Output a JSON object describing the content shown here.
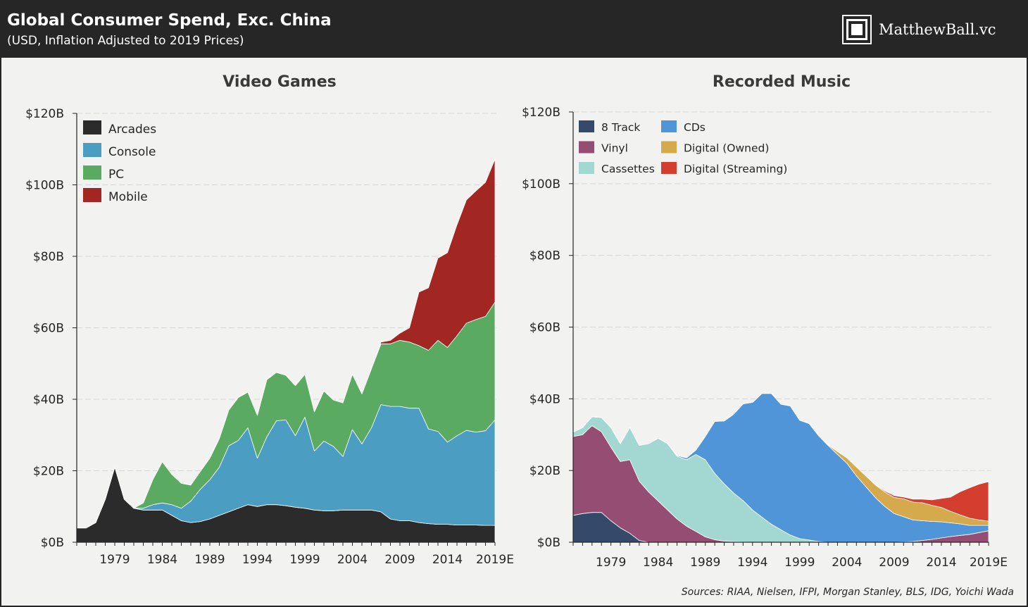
{
  "header": {
    "title": "Global Consumer Spend, Exc. China",
    "subtitle": "(USD, Inflation Adjusted to 2019 Prices)",
    "brand": "MatthewBall.vc"
  },
  "source": "Sources: RIAA, Nielsen, IFPI, Morgan Stanley, BLS, IDG, Yoichi Wada",
  "chart_data": [
    {
      "type": "area",
      "stacked": true,
      "title": "Video Games",
      "xlabel": "",
      "ylabel": "",
      "x": [
        1975,
        1976,
        1977,
        1978,
        1979,
        1980,
        1981,
        1982,
        1983,
        1984,
        1985,
        1986,
        1987,
        1988,
        1989,
        1990,
        1991,
        1992,
        1993,
        1994,
        1995,
        1996,
        1997,
        1998,
        1999,
        2000,
        2001,
        2002,
        2003,
        2004,
        2005,
        2006,
        2007,
        2008,
        2009,
        2010,
        2011,
        2012,
        2013,
        2014,
        2015,
        2016,
        2017,
        2018,
        2019
      ],
      "x_ticks": [
        1979,
        1984,
        1989,
        1994,
        1999,
        2004,
        2009,
        2014,
        2019
      ],
      "x_tick_labels": [
        "1979",
        "1984",
        "1989",
        "1994",
        "1999",
        "2004",
        "2009",
        "2014",
        "2019E"
      ],
      "ylim": [
        0,
        120
      ],
      "y_ticks": [
        0,
        20,
        40,
        60,
        80,
        100,
        120
      ],
      "y_tick_labels": [
        "$0B",
        "$20B",
        "$40B",
        "$60B",
        "$80B",
        "$100B",
        "$120B"
      ],
      "grid": true,
      "legend_position": "top-left",
      "series": [
        {
          "name": "Arcades",
          "color": "#2b2b2b",
          "values": [
            4,
            4,
            5.5,
            12,
            21,
            12,
            9.5,
            9,
            9,
            9,
            7.5,
            6,
            5.5,
            5.8,
            6.5,
            7.5,
            8.5,
            9.5,
            10.5,
            10,
            10.5,
            10.5,
            10.2,
            9.8,
            9.5,
            9,
            8.8,
            8.8,
            9,
            9,
            9,
            9,
            8.5,
            6.5,
            6,
            6,
            5.5,
            5.2,
            5,
            5,
            4.8,
            4.8,
            4.8,
            4.7,
            4.7
          ]
        },
        {
          "name": "Console",
          "color": "#4b9dc1",
          "values": [
            0,
            0,
            0,
            0,
            0,
            0,
            0,
            0.5,
            1.5,
            2,
            3,
            3.5,
            6,
            9,
            11,
            13.5,
            18.5,
            19,
            21.5,
            13.5,
            19,
            23.5,
            24,
            20,
            25.5,
            16.5,
            19.5,
            18,
            15,
            22.5,
            18.5,
            23,
            30,
            31.5,
            32,
            31.5,
            32,
            26.5,
            26,
            23,
            25,
            26.5,
            26,
            26.5,
            29.5
          ]
        },
        {
          "name": "PC",
          "color": "#5aaa61",
          "values": [
            0,
            0,
            0,
            0,
            0,
            0,
            0,
            1.5,
            7,
            11.5,
            8.5,
            7,
            4.5,
            5,
            6,
            8,
            10,
            12,
            10,
            12,
            16,
            13.5,
            12.5,
            14,
            12,
            11,
            14,
            13,
            15,
            15.5,
            14,
            16.5,
            17,
            17.5,
            18.5,
            18.5,
            17.5,
            22,
            25.5,
            26.5,
            28,
            30,
            31.5,
            32,
            33
          ]
        },
        {
          "name": "Mobile",
          "color": "#a22622",
          "values": [
            0,
            0,
            0,
            0,
            0,
            0,
            0,
            0,
            0,
            0,
            0,
            0,
            0,
            0,
            0,
            0,
            0,
            0,
            0,
            0,
            0,
            0,
            0,
            0,
            0,
            0,
            0,
            0,
            0,
            0,
            0,
            0,
            0.5,
            1,
            2,
            4,
            15,
            17.5,
            23,
            26.5,
            31,
            34.5,
            36,
            37.5,
            40
          ]
        }
      ]
    },
    {
      "type": "area",
      "stacked": true,
      "title": "Recorded Music",
      "xlabel": "",
      "ylabel": "",
      "x": [
        1975,
        1976,
        1977,
        1978,
        1979,
        1980,
        1981,
        1982,
        1983,
        1984,
        1985,
        1986,
        1987,
        1988,
        1989,
        1990,
        1991,
        1992,
        1993,
        1994,
        1995,
        1996,
        1997,
        1998,
        1999,
        2000,
        2001,
        2002,
        2003,
        2004,
        2005,
        2006,
        2007,
        2008,
        2009,
        2010,
        2011,
        2012,
        2013,
        2014,
        2015,
        2016,
        2017,
        2018,
        2019
      ],
      "x_ticks": [
        1979,
        1984,
        1989,
        1994,
        1999,
        2004,
        2009,
        2014,
        2019
      ],
      "x_tick_labels": [
        "1979",
        "1984",
        "1989",
        "1994",
        "1999",
        "2004",
        "2009",
        "2014",
        "2019E"
      ],
      "ylim": [
        0,
        120
      ],
      "y_ticks": [
        0,
        20,
        40,
        60,
        80,
        100,
        120
      ],
      "y_tick_labels": [
        "$0B",
        "$20B",
        "$40B",
        "$60B",
        "$80B",
        "$100B",
        "$120B"
      ],
      "grid": true,
      "legend_position": "top-left",
      "series": [
        {
          "name": "8 Track",
          "color": "#354a6b",
          "values": [
            7.5,
            8,
            8.3,
            8.3,
            6,
            4,
            2.5,
            0.5,
            0,
            0,
            0,
            0,
            0,
            0,
            0,
            0,
            0,
            0,
            0,
            0,
            0,
            0,
            0,
            0,
            0,
            0,
            0,
            0,
            0,
            0,
            0,
            0,
            0,
            0,
            0,
            0,
            0,
            0,
            0,
            0,
            0,
            0,
            0,
            0,
            0
          ]
        },
        {
          "name": "Vinyl",
          "color": "#954d74",
          "values": [
            22,
            22,
            24.2,
            22.5,
            20.5,
            18.5,
            20.5,
            16.5,
            14,
            11.5,
            9,
            6.5,
            4.5,
            3,
            1.5,
            0.7,
            0.3,
            0.2,
            0.1,
            0,
            0,
            0,
            0,
            0,
            0,
            0,
            0,
            0,
            0,
            0,
            0,
            0,
            0,
            0,
            0,
            0.1,
            0.2,
            0.5,
            0.8,
            1.2,
            1.6,
            1.9,
            2.2,
            2.7,
            3.2
          ]
        },
        {
          "name": "Cassettes",
          "color": "#a3d8d2",
          "values": [
            1.2,
            2,
            2.5,
            4,
            5.5,
            5,
            9,
            10,
            13.5,
            17.5,
            18.5,
            17.5,
            18.5,
            21.5,
            21.5,
            18.5,
            16,
            13.5,
            11.5,
            9,
            7,
            5,
            3.5,
            2,
            1,
            0.6,
            0.2,
            0,
            0,
            0,
            0,
            0,
            0,
            0,
            0,
            0,
            0,
            0,
            0,
            0,
            0,
            0,
            0,
            0,
            0
          ]
        },
        {
          "name": "CDs",
          "color": "#4f95d8",
          "values": [
            0,
            0,
            0,
            0,
            0,
            0,
            0,
            0,
            0,
            0,
            0,
            0.2,
            0.5,
            1.2,
            6.5,
            14.5,
            17.5,
            22,
            27,
            30,
            34.5,
            36.5,
            35,
            36,
            33,
            32.5,
            29.5,
            27,
            24.5,
            22,
            18.5,
            15.5,
            12.5,
            10,
            8,
            7,
            6,
            5.5,
            5,
            4.5,
            3.8,
            3.2,
            2.5,
            2,
            1.5
          ]
        },
        {
          "name": "Digital (Owned)",
          "color": "#d4aa4c",
          "values": [
            0,
            0,
            0,
            0,
            0,
            0,
            0,
            0,
            0,
            0,
            0,
            0,
            0,
            0,
            0,
            0,
            0,
            0,
            0,
            0,
            0,
            0,
            0,
            0,
            0,
            0,
            0,
            0.2,
            0.8,
            1.5,
            2.5,
            3,
            3.5,
            4,
            4.5,
            5,
            5,
            5,
            4.5,
            4,
            3.2,
            2.5,
            2,
            1.5,
            1.2
          ]
        },
        {
          "name": "Digital (Streaming)",
          "color": "#d33e2f",
          "values": [
            0,
            0,
            0,
            0,
            0,
            0,
            0,
            0,
            0,
            0,
            0,
            0,
            0,
            0,
            0,
            0,
            0,
            0,
            0,
            0,
            0,
            0,
            0,
            0,
            0,
            0,
            0,
            0,
            0,
            0,
            0,
            0,
            0.2,
            0.3,
            0.5,
            0.5,
            0.8,
            1,
            1.5,
            2.5,
            4,
            6.5,
            8.5,
            10,
            11
          ]
        }
      ]
    }
  ]
}
